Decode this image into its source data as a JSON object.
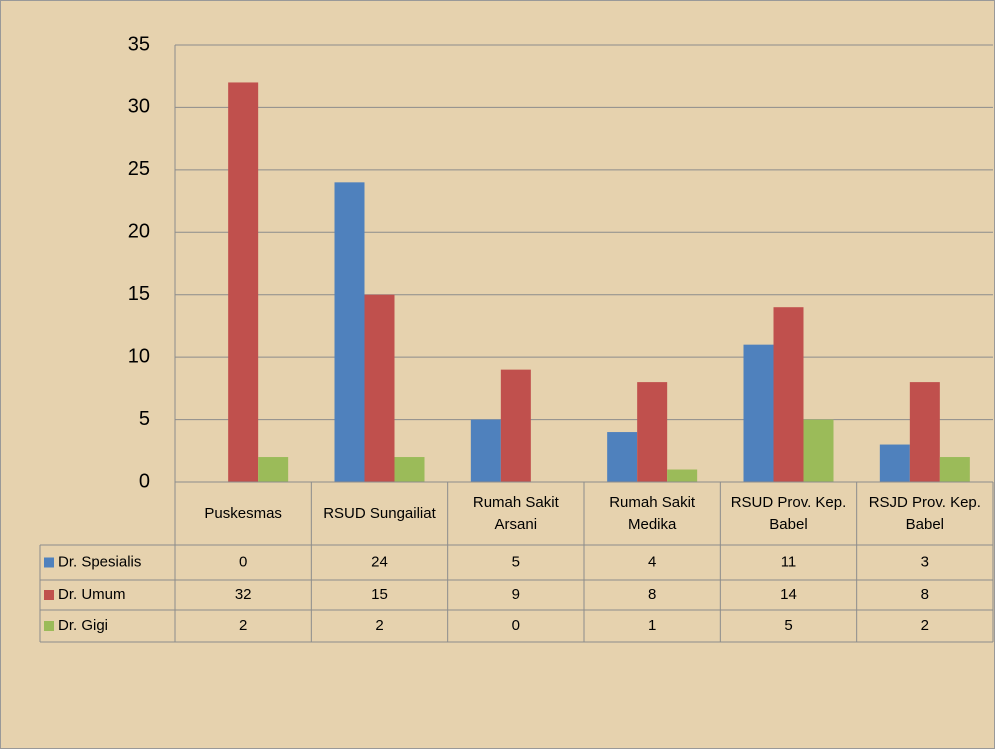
{
  "chart_data": {
    "type": "bar",
    "categories": [
      "Puskesmas",
      "RSUD Sungailiat",
      "Rumah Sakit Arsani",
      "Rumah Sakit Medika",
      "RSUD Prov. Kep. Babel",
      "RSJD Prov. Kep. Babel"
    ],
    "series": [
      {
        "name": "Dr. Spesialis",
        "color": "#4f81bd",
        "values": [
          0,
          24,
          5,
          4,
          11,
          3
        ]
      },
      {
        "name": "Dr. Umum",
        "color": "#c0504d",
        "values": [
          32,
          15,
          9,
          8,
          14,
          8
        ]
      },
      {
        "name": "Dr. Gigi",
        "color": "#9bbb59",
        "values": [
          2,
          2,
          0,
          1,
          5,
          2
        ]
      }
    ],
    "ylim": [
      0,
      35
    ],
    "yticks": [
      0,
      5,
      10,
      15,
      20,
      25,
      30,
      35
    ],
    "grid": true,
    "data_table": true
  }
}
